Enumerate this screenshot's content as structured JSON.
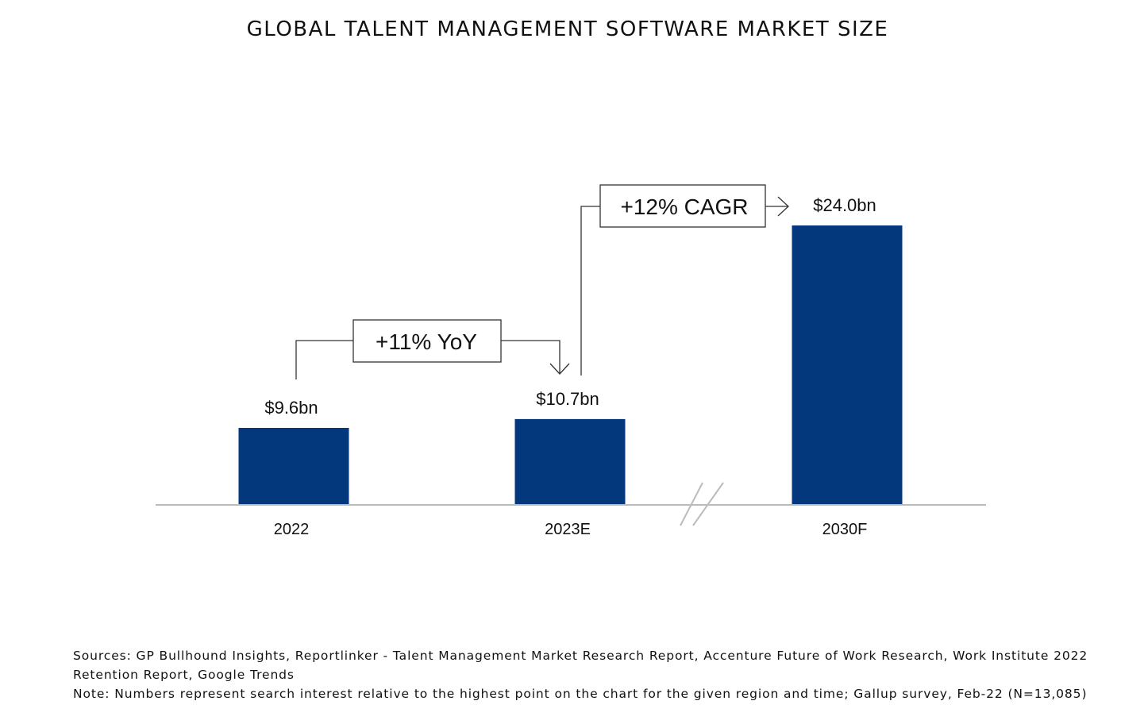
{
  "title": "GLOBAL TALENT MANAGEMENT SOFTWARE MARKET SIZE",
  "colors": {
    "bar": "#04387C",
    "axis": "#BBBBBB",
    "annotation_line": "#333333",
    "break_mark": "#BBBBBB"
  },
  "chart_data": {
    "type": "bar",
    "title": "GLOBAL TALENT MANAGEMENT SOFTWARE MARKET SIZE",
    "categories": [
      "2022",
      "2023E",
      "2030F"
    ],
    "values": [
      9.6,
      10.7,
      24.0
    ],
    "data_labels": [
      "$9.6bn",
      "$10.7bn",
      "$24.0bn"
    ],
    "xlabel": "",
    "ylabel": "",
    "ylim": [
      0,
      24.0
    ],
    "grid": false,
    "legend": "none",
    "axis_break": "between 2023E and 2030F",
    "annotations": [
      {
        "text": "+11% YoY",
        "from": "2022",
        "to": "2023E"
      },
      {
        "text": "+12% CAGR",
        "from": "2023E",
        "to": "2030F"
      }
    ]
  },
  "footnotes": {
    "sources": "Sources: GP Bullhound Insights, Reportlinker - Talent Management Market Research Report, Accenture Future of Work Research, Work Institute 2022 Retention Report, Google Trends",
    "note": "Note: Numbers represent search interest relative to the highest point on the chart for the given region and time; Gallup survey, Feb-22 (N=13,085)"
  }
}
